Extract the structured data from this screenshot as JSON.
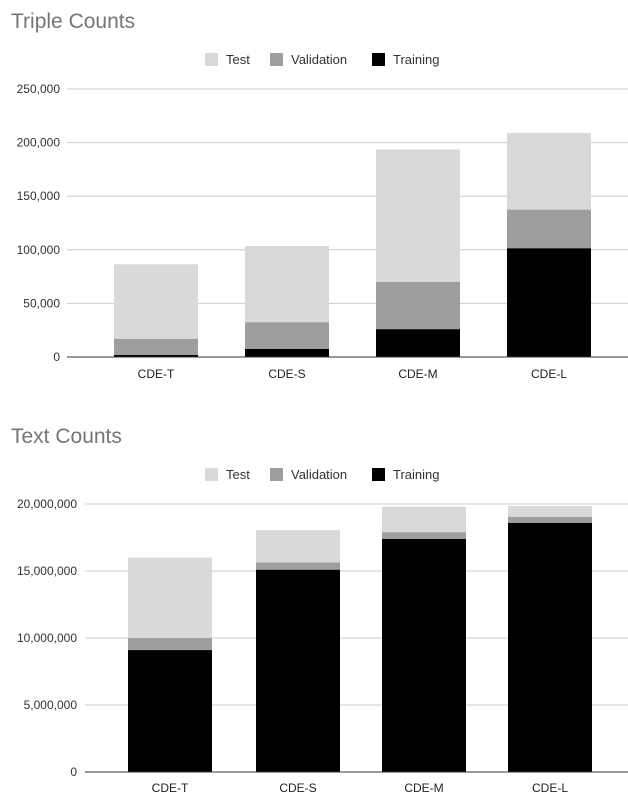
{
  "chart_data": [
    {
      "type": "bar",
      "stacked": true,
      "title": "Triple Counts",
      "categories": [
        "CDE-T",
        "CDE-S",
        "CDE-M",
        "CDE-L"
      ],
      "series": [
        {
          "name": "Training",
          "values": [
            2000,
            7500,
            26000,
            101500
          ],
          "color": "#000000"
        },
        {
          "name": "Validation",
          "values": [
            15000,
            25000,
            44000,
            36000
          ],
          "color": "#9e9e9e"
        },
        {
          "name": "Test",
          "values": [
            69500,
            71000,
            123500,
            71500
          ],
          "color": "#d9d9d9"
        }
      ],
      "legend_order": [
        "Test",
        "Validation",
        "Training"
      ],
      "legend_position": "top",
      "ylim": [
        0,
        250000
      ],
      "yticks": [
        "0",
        "50,000",
        "100,000",
        "150,000",
        "200,000",
        "250,000"
      ],
      "grid": true
    },
    {
      "type": "bar",
      "stacked": true,
      "title": "Text Counts",
      "categories": [
        "CDE-T",
        "CDE-S",
        "CDE-M",
        "CDE-L"
      ],
      "series": [
        {
          "name": "Training",
          "values": [
            9100000,
            15100000,
            17400000,
            18600000
          ],
          "color": "#000000"
        },
        {
          "name": "Validation",
          "values": [
            900000,
            550000,
            500000,
            450000
          ],
          "color": "#9e9e9e"
        },
        {
          "name": "Test",
          "values": [
            6000000,
            2400000,
            1900000,
            800000
          ],
          "color": "#d9d9d9"
        }
      ],
      "legend_order": [
        "Test",
        "Validation",
        "Training"
      ],
      "legend_position": "top",
      "ylim": [
        0,
        20000000
      ],
      "yticks": [
        "0",
        "5,000,000",
        "10,000,000",
        "15,000,000",
        "20,000,000"
      ],
      "grid": true
    }
  ]
}
